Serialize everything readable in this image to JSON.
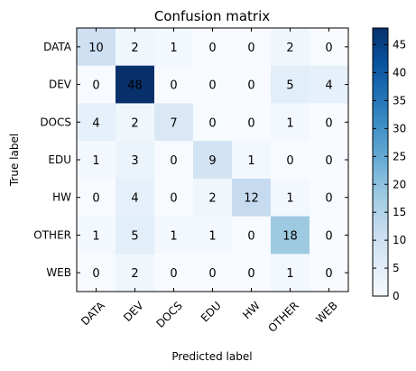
{
  "chart_data": {
    "type": "heatmap",
    "title": "Confusion matrix",
    "xlabel": "Predicted label",
    "ylabel": "True label",
    "x_categories": [
      "DATA",
      "DEV",
      "DOCS",
      "EDU",
      "HW",
      "OTHER",
      "WEB"
    ],
    "y_categories": [
      "DATA",
      "DEV",
      "DOCS",
      "EDU",
      "HW",
      "OTHER",
      "WEB"
    ],
    "values": [
      [
        10,
        2,
        1,
        0,
        0,
        2,
        0
      ],
      [
        0,
        48,
        0,
        0,
        0,
        5,
        4
      ],
      [
        4,
        2,
        7,
        0,
        0,
        1,
        0
      ],
      [
        1,
        3,
        0,
        9,
        1,
        0,
        0
      ],
      [
        0,
        4,
        0,
        2,
        12,
        1,
        0
      ],
      [
        1,
        5,
        1,
        1,
        0,
        18,
        0
      ],
      [
        0,
        2,
        0,
        0,
        0,
        1,
        0
      ]
    ],
    "colormap": "Blues",
    "vmin": 0,
    "vmax": 48,
    "colorbar_ticks": [
      0,
      5,
      10,
      15,
      20,
      25,
      30,
      35,
      40,
      45
    ]
  }
}
